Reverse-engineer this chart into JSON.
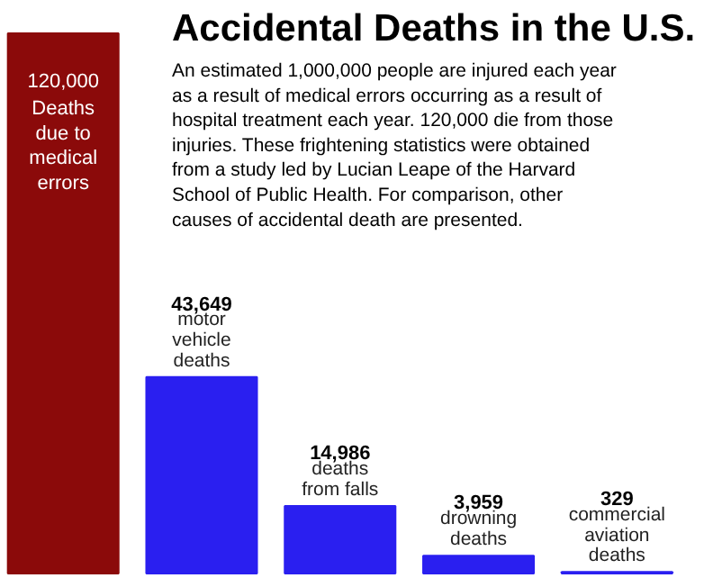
{
  "chart_data": {
    "type": "bar",
    "title": "Accidental Deaths in the U.S.",
    "subtitle": "An estimated 1,000,000 people are injured each year\nas a result of medical errors occurring as a result of\nhospital treatment each year.  120,000 die from those\ninjuries.  These frightening statistics were obtained\nfrom a study led by Lucian Leape of the Harvard\nSchool of Public Health.  For comparison, other\ncauses of accidental death are presented.",
    "categories": [
      "Deaths\ndue to\nmedical\nerrors",
      "motor\nvehicle\ndeaths",
      "deaths\nfrom falls",
      "drowning\ndeaths",
      "commercial\naviation\ndeaths"
    ],
    "values": [
      120000,
      43649,
      14986,
      3959,
      329
    ],
    "value_labels": [
      "120,000",
      "43,649",
      "14,986",
      "3,959",
      "329"
    ],
    "colors": [
      "#8b0a0a",
      "#2a1ff0",
      "#2a1ff0",
      "#2a1ff0",
      "#2a1ff0"
    ]
  }
}
